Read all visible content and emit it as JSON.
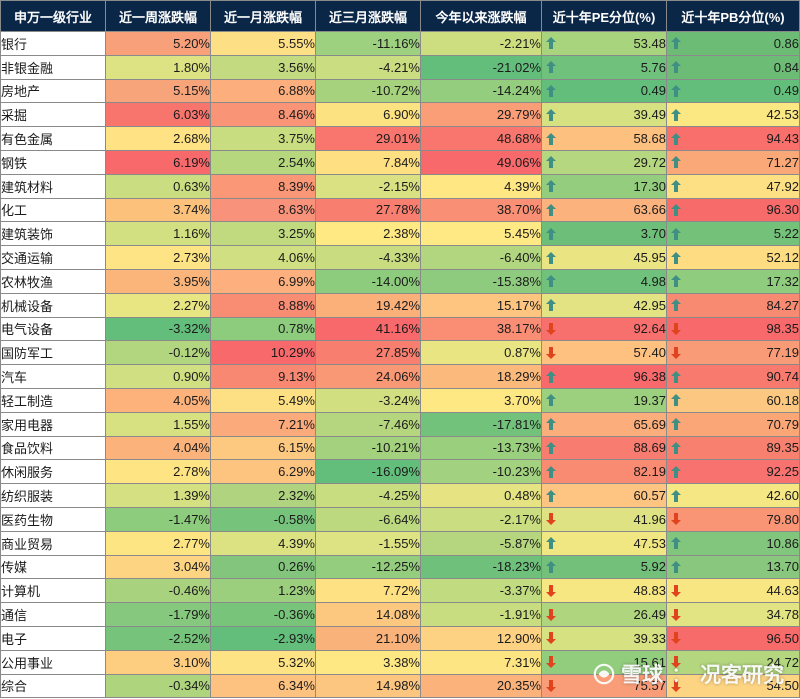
{
  "table": {
    "headers": [
      "申万一级行业",
      "近一周涨跌幅",
      "近一月涨跌幅",
      "近三月涨跌幅",
      "今年以来涨跌幅",
      "近十年PE分位(%)",
      "近十年PB分位(%)"
    ],
    "arrow_colors": {
      "up": "#3f8f84",
      "down": "#e0441f"
    },
    "rows": [
      {
        "name": "银行",
        "w1": "5.20%",
        "m1": "5.55%",
        "m3": "-11.16%",
        "ytd": "-2.21%",
        "pe": "53.48",
        "pe_dir": "up",
        "pb": "0.86",
        "pb_dir": "up",
        "bg": [
          "#f8a07a",
          "#fddf86",
          "#9dd07f",
          "#ccde80",
          "#a8d47e",
          "#6cbc76"
        ]
      },
      {
        "name": "非银金融",
        "w1": "1.80%",
        "m1": "3.56%",
        "m3": "-4.21%",
        "ytd": "-21.02%",
        "pe": "5.76",
        "pe_dir": "up",
        "pb": "0.84",
        "pb_dir": "up",
        "bg": [
          "#dde382",
          "#c4da80",
          "#cadd80",
          "#63be7b",
          "#6fc17c",
          "#6cbc76"
        ]
      },
      {
        "name": "房地产",
        "w1": "5.15%",
        "m1": "6.88%",
        "m3": "-10.72%",
        "ytd": "-14.24%",
        "pe": "0.49",
        "pe_dir": "up",
        "pb": "0.49",
        "pb_dir": "up",
        "bg": [
          "#f8a47b",
          "#fcaf7d",
          "#a6d27e",
          "#94cd7e",
          "#63be7b",
          "#63be7b"
        ]
      },
      {
        "name": "采掘",
        "w1": "6.03%",
        "m1": "8.46%",
        "m3": "6.90%",
        "ytd": "29.79%",
        "pe": "39.49",
        "pe_dir": "up",
        "pb": "42.53",
        "pb_dir": "up",
        "bg": [
          "#f8756d",
          "#f99576",
          "#fde282",
          "#fa9e78",
          "#d6e182",
          "#fbe883"
        ]
      },
      {
        "name": "有色金属",
        "w1": "2.68%",
        "m1": "3.75%",
        "m3": "29.01%",
        "ytd": "48.68%",
        "pe": "58.68",
        "pe_dir": "up",
        "pb": "94.43",
        "pb_dir": "up",
        "bg": [
          "#fee283",
          "#c8dc80",
          "#f8766d",
          "#f8766d",
          "#fdc07f",
          "#f86f6b"
        ]
      },
      {
        "name": "钢铁",
        "w1": "6.19%",
        "m1": "2.54%",
        "m3": "7.84%",
        "ytd": "49.06%",
        "pe": "29.72",
        "pe_dir": "up",
        "pb": "71.27",
        "pb_dir": "up",
        "bg": [
          "#f8696b",
          "#b7d77e",
          "#fedf82",
          "#f8696b",
          "#b5d77f",
          "#fba879"
        ]
      },
      {
        "name": "建筑材料",
        "w1": "0.63%",
        "m1": "8.39%",
        "m3": "-2.15%",
        "ytd": "4.39%",
        "pe": "17.30",
        "pe_dir": "up",
        "pb": "47.92",
        "pb_dir": "up",
        "bg": [
          "#cadd80",
          "#f99777",
          "#d9e182",
          "#ffe784",
          "#95cd7e",
          "#fde084"
        ]
      },
      {
        "name": "化工",
        "w1": "3.74%",
        "m1": "8.63%",
        "m3": "27.78%",
        "ytd": "38.70%",
        "pe": "63.66",
        "pe_dir": "up",
        "pb": "96.30",
        "pb_dir": "up",
        "bg": [
          "#fcc27c",
          "#f9927a",
          "#f87e6f",
          "#f98f75",
          "#fbb27c",
          "#f86b6b"
        ]
      },
      {
        "name": "建筑装饰",
        "w1": "1.16%",
        "m1": "3.25%",
        "m3": "2.38%",
        "ytd": "5.45%",
        "pe": "3.70",
        "pe_dir": "up",
        "pb": "5.22",
        "pb_dir": "up",
        "bg": [
          "#d3e081",
          "#c1da80",
          "#fee983",
          "#fee984",
          "#6dbe79",
          "#74c17a"
        ]
      },
      {
        "name": "交通运输",
        "w1": "2.73%",
        "m1": "4.06%",
        "m3": "-4.33%",
        "ytd": "-6.40%",
        "pe": "45.95",
        "pe_dir": "up",
        "pb": "52.12",
        "pb_dir": "up",
        "bg": [
          "#fee484",
          "#d0df81",
          "#c9dd80",
          "#b1d67f",
          "#eae582",
          "#fedc82"
        ]
      },
      {
        "name": "农林牧渔",
        "w1": "3.95%",
        "m1": "6.99%",
        "m3": "-14.00%",
        "ytd": "-15.38%",
        "pe": "4.98",
        "pe_dir": "up",
        "pb": "17.32",
        "pb_dir": "up",
        "bg": [
          "#fbb57a",
          "#fdb07e",
          "#8dcb7d",
          "#8fcb7e",
          "#6fc17c",
          "#90cc7d"
        ]
      },
      {
        "name": "机械设备",
        "w1": "2.27%",
        "m1": "8.88%",
        "m3": "19.42%",
        "ytd": "15.17%",
        "pe": "42.95",
        "pe_dir": "up",
        "pb": "84.27",
        "pb_dir": "up",
        "bg": [
          "#e8e583",
          "#f98d74",
          "#fbb07a",
          "#fdc580",
          "#e3e383",
          "#f98a72"
        ]
      },
      {
        "name": "电气设备",
        "w1": "-3.32%",
        "m1": "0.78%",
        "m3": "41.16%",
        "ytd": "38.17%",
        "pe": "92.64",
        "pe_dir": "down",
        "pb": "98.35",
        "pb_dir": "down",
        "bg": [
          "#63be7b",
          "#8dcb7d",
          "#f8696b",
          "#f98e75",
          "#f8706d",
          "#f8696b"
        ]
      },
      {
        "name": "国防军工",
        "w1": "-0.12%",
        "m1": "10.29%",
        "m3": "27.85%",
        "ytd": "0.87%",
        "pe": "57.40",
        "pe_dir": "down",
        "pb": "77.19",
        "pb_dir": "down",
        "bg": [
          "#b2d67f",
          "#f8696b",
          "#f87f6f",
          "#e8e582",
          "#fec180",
          "#f99b76"
        ]
      },
      {
        "name": "汽车",
        "w1": "0.90%",
        "m1": "9.13%",
        "m3": "24.06%",
        "ytd": "18.29%",
        "pe": "96.38",
        "pe_dir": "up",
        "pb": "90.74",
        "pb_dir": "up",
        "bg": [
          "#cfdf82",
          "#f98873",
          "#f99874",
          "#fcb97c",
          "#f8696b",
          "#f87a6e"
        ]
      },
      {
        "name": "轻工制造",
        "w1": "4.05%",
        "m1": "5.49%",
        "m3": "-3.24%",
        "ytd": "3.70%",
        "pe": "19.37",
        "pe_dir": "up",
        "pb": "60.18",
        "pb_dir": "up",
        "bg": [
          "#fcb27a",
          "#fde083",
          "#d2df81",
          "#fee884",
          "#9ccf7e",
          "#fcc780"
        ]
      },
      {
        "name": "家用电器",
        "w1": "1.55%",
        "m1": "7.21%",
        "m3": "-7.46%",
        "ytd": "-17.81%",
        "pe": "65.69",
        "pe_dir": "up",
        "pb": "70.79",
        "pb_dir": "up",
        "bg": [
          "#d8e182",
          "#fbab7b",
          "#b5d67e",
          "#72c27c",
          "#fbae7b",
          "#fba677"
        ]
      },
      {
        "name": "食品饮料",
        "w1": "4.04%",
        "m1": "6.15%",
        "m3": "-10.21%",
        "ytd": "-13.73%",
        "pe": "88.69",
        "pe_dir": "up",
        "pb": "89.35",
        "pb_dir": "up",
        "bg": [
          "#fcb37b",
          "#fdc981",
          "#a3d17e",
          "#9ad07d",
          "#f87c6f",
          "#f8806f"
        ]
      },
      {
        "name": "休闲服务",
        "w1": "2.78%",
        "m1": "6.29%",
        "m3": "-16.09%",
        "ytd": "-10.23%",
        "pe": "82.19",
        "pe_dir": "up",
        "pb": "92.25",
        "pb_dir": "up",
        "bg": [
          "#ffe483",
          "#fdc480",
          "#63be7b",
          "#a2d27f",
          "#f98b73",
          "#f87370"
        ]
      },
      {
        "name": "纺织服装",
        "w1": "1.39%",
        "m1": "2.32%",
        "m3": "-4.25%",
        "ytd": "0.48%",
        "pe": "60.57",
        "pe_dir": "up",
        "pb": "42.60",
        "pb_dir": "up",
        "bg": [
          "#d4e081",
          "#b0d37f",
          "#c8dd80",
          "#e6e482",
          "#fdc581",
          "#f5e784"
        ]
      },
      {
        "name": "医药生物",
        "w1": "-1.47%",
        "m1": "-0.58%",
        "m3": "-6.64%",
        "ytd": "-2.17%",
        "pe": "41.96",
        "pe_dir": "down",
        "pb": "79.80",
        "pb_dir": "down",
        "bg": [
          "#8dcb7d",
          "#76c37b",
          "#bcd97f",
          "#cadd81",
          "#dfe282",
          "#f99474"
        ]
      },
      {
        "name": "商业贸易",
        "w1": "2.77%",
        "m1": "4.39%",
        "m3": "-1.55%",
        "ytd": "-5.87%",
        "pe": "47.53",
        "pe_dir": "up",
        "pb": "10.86",
        "pb_dir": "up",
        "bg": [
          "#fee584",
          "#dce282",
          "#dde282",
          "#b5d67e",
          "#f0e783",
          "#82c57c"
        ]
      },
      {
        "name": "传媒",
        "w1": "3.04%",
        "m1": "0.26%",
        "m3": "-12.25%",
        "ytd": "-18.23%",
        "pe": "5.92",
        "pe_dir": "up",
        "pb": "13.70",
        "pb_dir": "up",
        "bg": [
          "#fdd582",
          "#83c57c",
          "#95cd7e",
          "#6ec07b",
          "#73c07a",
          "#88c77d"
        ]
      },
      {
        "name": "计算机",
        "w1": "-0.46%",
        "m1": "1.23%",
        "m3": "7.72%",
        "ytd": "-3.37%",
        "pe": "48.83",
        "pe_dir": "down",
        "pb": "44.63",
        "pb_dir": "down",
        "bg": [
          "#a8d27e",
          "#9bcf7e",
          "#fee183",
          "#c1db80",
          "#f6e783",
          "#f8e683"
        ]
      },
      {
        "name": "通信",
        "w1": "-1.79%",
        "m1": "-0.36%",
        "m3": "14.08%",
        "ytd": "-1.91%",
        "pe": "26.49",
        "pe_dir": "down",
        "pb": "34.78",
        "pb_dir": "down",
        "bg": [
          "#86c87d",
          "#79c47b",
          "#fcc880",
          "#c8dd80",
          "#b0d57f",
          "#e2e382"
        ]
      },
      {
        "name": "电子",
        "w1": "-2.52%",
        "m1": "-2.93%",
        "m3": "21.10%",
        "ytd": "12.90%",
        "pe": "39.33",
        "pe_dir": "down",
        "pb": "96.50",
        "pb_dir": "down",
        "bg": [
          "#76c47b",
          "#63be7b",
          "#fab27b",
          "#fdd282",
          "#d6e182",
          "#f86b6b"
        ]
      },
      {
        "name": "公用事业",
        "w1": "3.10%",
        "m1": "5.32%",
        "m3": "3.38%",
        "ytd": "7.31%",
        "pe": "15.61",
        "pe_dir": "down",
        "pb": "24.72",
        "pb_dir": "down",
        "bg": [
          "#fdcd80",
          "#fee384",
          "#fee884",
          "#fee584",
          "#92cc7d",
          "#b3d67f"
        ]
      },
      {
        "name": "综合",
        "w1": "-0.34%",
        "m1": "6.34%",
        "m3": "14.98%",
        "ytd": "20.35%",
        "pe": "75.57",
        "pe_dir": "down",
        "pb": "54.50",
        "pb_dir": "down",
        "bg": [
          "#aed47e",
          "#fdc280",
          "#fcc580",
          "#fbb27b",
          "#f99d78",
          "#fdd482"
        ]
      }
    ]
  },
  "watermark": {
    "brand": "雪球",
    "sep": "：",
    "author": "况客研究"
  }
}
